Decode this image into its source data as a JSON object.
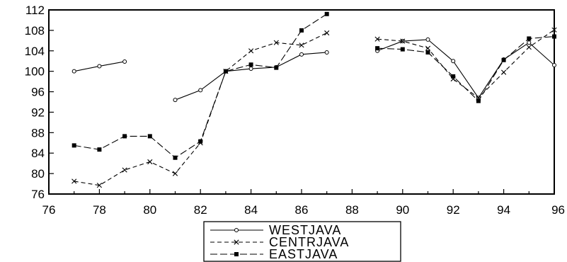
{
  "chart_data": {
    "type": "line",
    "title": "",
    "xlabel": "",
    "ylabel": "",
    "xlim": [
      76,
      96
    ],
    "ylim": [
      76,
      112
    ],
    "x_ticks": [
      76,
      78,
      80,
      82,
      84,
      86,
      88,
      90,
      92,
      94,
      96
    ],
    "y_ticks": [
      76,
      80,
      84,
      88,
      92,
      96,
      100,
      104,
      108,
      112
    ],
    "grid": false,
    "legend_position": "bottom-center",
    "series": [
      {
        "name": "WESTJAVA",
        "line_style": "solid",
        "marker": "open-circle",
        "color": "#000000",
        "points": [
          [
            77,
            100.0
          ],
          [
            78,
            101.0
          ],
          [
            79,
            101.9
          ],
          [
            81,
            94.4
          ],
          [
            82,
            96.3
          ],
          [
            83,
            100.0
          ],
          [
            84,
            100.5
          ],
          [
            85,
            100.8
          ],
          [
            86,
            103.3
          ],
          [
            87,
            103.7
          ],
          [
            89,
            104.0
          ],
          [
            90,
            105.9
          ],
          [
            91,
            106.2
          ],
          [
            92,
            102.0
          ],
          [
            93,
            94.8
          ],
          [
            94,
            102.3
          ],
          [
            95,
            105.6
          ],
          [
            96,
            101.2
          ]
        ]
      },
      {
        "name": "CENTRJAVA",
        "line_style": "dashed",
        "marker": "x",
        "color": "#000000",
        "points": [
          [
            77,
            78.5
          ],
          [
            78,
            77.7
          ],
          [
            79,
            80.7
          ],
          [
            80,
            82.3
          ],
          [
            81,
            80.0
          ],
          [
            82,
            86.0
          ],
          [
            83,
            100.0
          ],
          [
            84,
            104.0
          ],
          [
            85,
            105.6
          ],
          [
            86,
            105.1
          ],
          [
            87,
            107.5
          ],
          [
            89,
            106.3
          ],
          [
            90,
            105.9
          ],
          [
            91,
            104.5
          ],
          [
            92,
            98.5
          ],
          [
            93,
            94.8
          ],
          [
            94,
            99.8
          ],
          [
            95,
            104.7
          ],
          [
            96,
            108.1
          ]
        ]
      },
      {
        "name": "EASTJAVA",
        "line_style": "long-dash",
        "marker": "filled-square",
        "color": "#000000",
        "points": [
          [
            77,
            85.5
          ],
          [
            78,
            84.7
          ],
          [
            79,
            87.3
          ],
          [
            80,
            87.3
          ],
          [
            81,
            83.1
          ],
          [
            82,
            86.3
          ],
          [
            83,
            100.0
          ],
          [
            84,
            101.3
          ],
          [
            85,
            100.7
          ],
          [
            86,
            108.0
          ],
          [
            87,
            111.2
          ],
          [
            89,
            104.5
          ],
          [
            90,
            104.3
          ],
          [
            91,
            103.7
          ],
          [
            92,
            99.0
          ],
          [
            93,
            94.2
          ],
          [
            94,
            102.2
          ],
          [
            95,
            106.4
          ],
          [
            96,
            106.8
          ]
        ]
      }
    ]
  }
}
